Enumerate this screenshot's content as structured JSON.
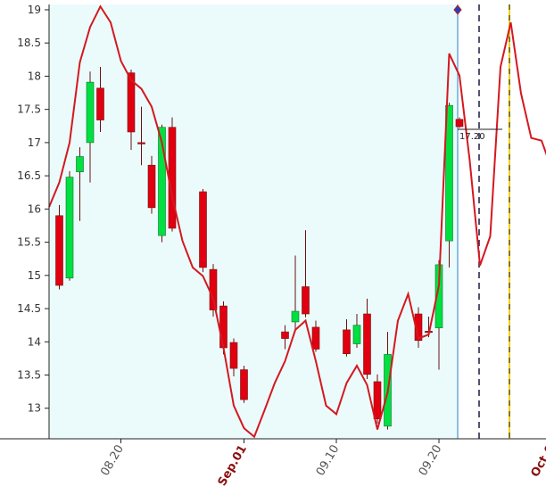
{
  "chart_data": {
    "type": "candlestick",
    "ylim": [
      12.54,
      19.08
    ],
    "yticks": [
      13,
      13.5,
      14,
      14.5,
      15,
      15.5,
      16,
      16.5,
      17,
      17.5,
      18,
      18.5,
      19
    ],
    "categories": [
      null,
      null,
      null,
      null,
      null,
      null,
      null,
      "08.20",
      null,
      null,
      null,
      null,
      null,
      null,
      null,
      null,
      null,
      null,
      null,
      "Sep.01",
      null,
      null,
      null,
      null,
      null,
      null,
      null,
      null,
      "09.10",
      null,
      null,
      null,
      null,
      null,
      null,
      null,
      null,
      null,
      "09.20",
      null,
      null,
      null,
      null,
      null,
      null,
      null,
      null,
      null,
      null,
      "Oct.0"
    ],
    "open": [
      null,
      15.9,
      14.96,
      16.56,
      17.0,
      17.82,
      null,
      null,
      18.05,
      17.0,
      16.66,
      15.6,
      17.23,
      null,
      null,
      16.26,
      15.09,
      14.54,
      13.99,
      13.58,
      null,
      null,
      null,
      14.15,
      14.3,
      14.83,
      14.22,
      null,
      null,
      14.18,
      13.97,
      14.42,
      13.4,
      12.73,
      null,
      null,
      14.42,
      14.16,
      14.21,
      15.52,
      17.35,
      null,
      null,
      null,
      null,
      null,
      null,
      null,
      null,
      null
    ],
    "high": [
      null,
      16.06,
      16.57,
      16.93,
      18.07,
      18.14,
      null,
      null,
      18.1,
      17.54,
      16.8,
      17.27,
      17.38,
      null,
      null,
      16.3,
      15.17,
      14.61,
      14.05,
      13.64,
      null,
      null,
      null,
      14.25,
      15.3,
      15.68,
      14.32,
      null,
      null,
      14.34,
      14.42,
      14.65,
      13.51,
      14.15,
      null,
      null,
      14.52,
      14.38,
      15.23,
      17.6,
      17.38,
      null,
      null,
      null,
      null,
      null,
      null,
      null,
      null,
      null
    ],
    "low": [
      null,
      14.79,
      14.92,
      15.82,
      16.4,
      17.16,
      null,
      null,
      16.89,
      16.66,
      15.93,
      15.5,
      15.66,
      null,
      null,
      15.05,
      14.38,
      13.81,
      13.48,
      13.08,
      null,
      null,
      null,
      13.89,
      14.15,
      14.37,
      13.85,
      null,
      null,
      13.78,
      13.91,
      13.44,
      12.77,
      12.68,
      null,
      null,
      13.91,
      14.07,
      13.58,
      15.12,
      17.22,
      null,
      null,
      null,
      null,
      null,
      null,
      null,
      null,
      null
    ],
    "close": [
      null,
      14.85,
      16.48,
      16.79,
      17.91,
      17.34,
      null,
      null,
      17.16,
      16.98,
      16.02,
      17.23,
      15.71,
      null,
      null,
      15.12,
      14.48,
      13.91,
      13.6,
      13.13,
      null,
      null,
      null,
      14.05,
      14.46,
      14.42,
      13.89,
      null,
      null,
      13.82,
      14.25,
      13.51,
      12.84,
      13.81,
      null,
      null,
      14.02,
      14.14,
      15.16,
      17.56,
      17.24,
      null,
      null,
      null,
      null,
      null,
      null,
      null,
      null,
      null
    ],
    "up_color": "#00e040",
    "down_color": "#e00010",
    "line_color": "#d41820",
    "line_values": [
      16.03,
      16.4,
      17.0,
      18.21,
      18.74,
      19.05,
      18.81,
      18.23,
      17.94,
      17.81,
      17.54,
      17.0,
      16.19,
      15.52,
      15.12,
      14.99,
      14.65,
      13.91,
      13.04,
      12.7,
      12.57,
      12.97,
      13.38,
      13.71,
      14.18,
      14.32,
      13.71,
      13.04,
      12.91,
      13.38,
      13.64,
      13.35,
      12.68,
      13.24,
      14.32,
      14.72,
      14.05,
      14.11,
      14.85,
      18.34,
      18.01,
      16.73,
      15.15,
      15.59,
      18.14,
      18.81,
      17.74,
      17.07,
      17.03,
      16.6
    ],
    "annotation": {
      "value": 17.2,
      "label": "17.20"
    }
  }
}
